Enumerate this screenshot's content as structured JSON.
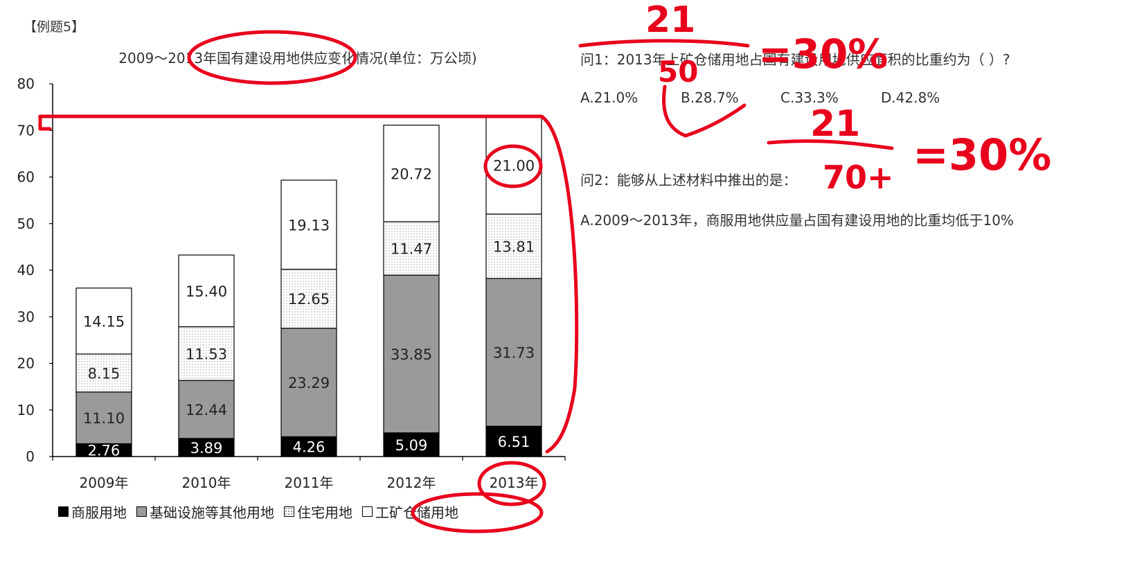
{
  "example_tag": "【例题5】",
  "chart_data": {
    "type": "bar",
    "stacked": true,
    "title": "2009～2013年国有建设用地供应变化情况(单位：万公顷)",
    "categories": [
      "2009年",
      "2010年",
      "2011年",
      "2012年",
      "2013年"
    ],
    "series": [
      {
        "name": "商服用地",
        "values": [
          2.76,
          3.89,
          4.26,
          5.09,
          6.51
        ],
        "fill": "#000000",
        "label_color": "#ffffff"
      },
      {
        "name": "基础设施等其他用地",
        "values": [
          11.1,
          12.44,
          23.29,
          33.85,
          31.73
        ],
        "fill": "#9a9a9a",
        "label_color": "#222222"
      },
      {
        "name": "住宅用地",
        "values": [
          8.15,
          11.53,
          12.65,
          11.47,
          13.81
        ],
        "fill": "dots",
        "label_color": "#222222"
      },
      {
        "name": "工矿仓储用地",
        "values": [
          14.15,
          15.4,
          19.13,
          20.72,
          21.0
        ],
        "fill": "#ffffff",
        "label_color": "#222222"
      }
    ],
    "ylim": [
      0,
      80
    ],
    "yticks": [
      0,
      10,
      20,
      30,
      40,
      50,
      60,
      70,
      80
    ],
    "grid": false,
    "legend_position": "bottom"
  },
  "legend": [
    {
      "label": "商服用地",
      "style": "black"
    },
    {
      "label": "基础设施等其他用地",
      "style": "gray"
    },
    {
      "label": "住宅用地",
      "style": "dot"
    },
    {
      "label": "工矿仓储用地",
      "style": "white"
    }
  ],
  "question1": {
    "text": "问1：2013年上矿仓储用地占国有建设用地供应面积的比重约为（ ）?",
    "options": [
      "A.21.0%",
      "B.28.7%",
      "C.33.3%",
      "D.42.8%"
    ]
  },
  "question2": {
    "text": "问2：能够从上述材料中推出的是：",
    "option_a": "A.2009～2013年，商服用地供应量占国有建设用地的比重均低于10%"
  },
  "annotations": {
    "fraction1_num": "21",
    "fraction1_den": "50",
    "result1": "=30%",
    "fraction2_num": "21",
    "fraction2_den": "70+",
    "result2": "=30%",
    "ink_color": "#e8001c"
  }
}
